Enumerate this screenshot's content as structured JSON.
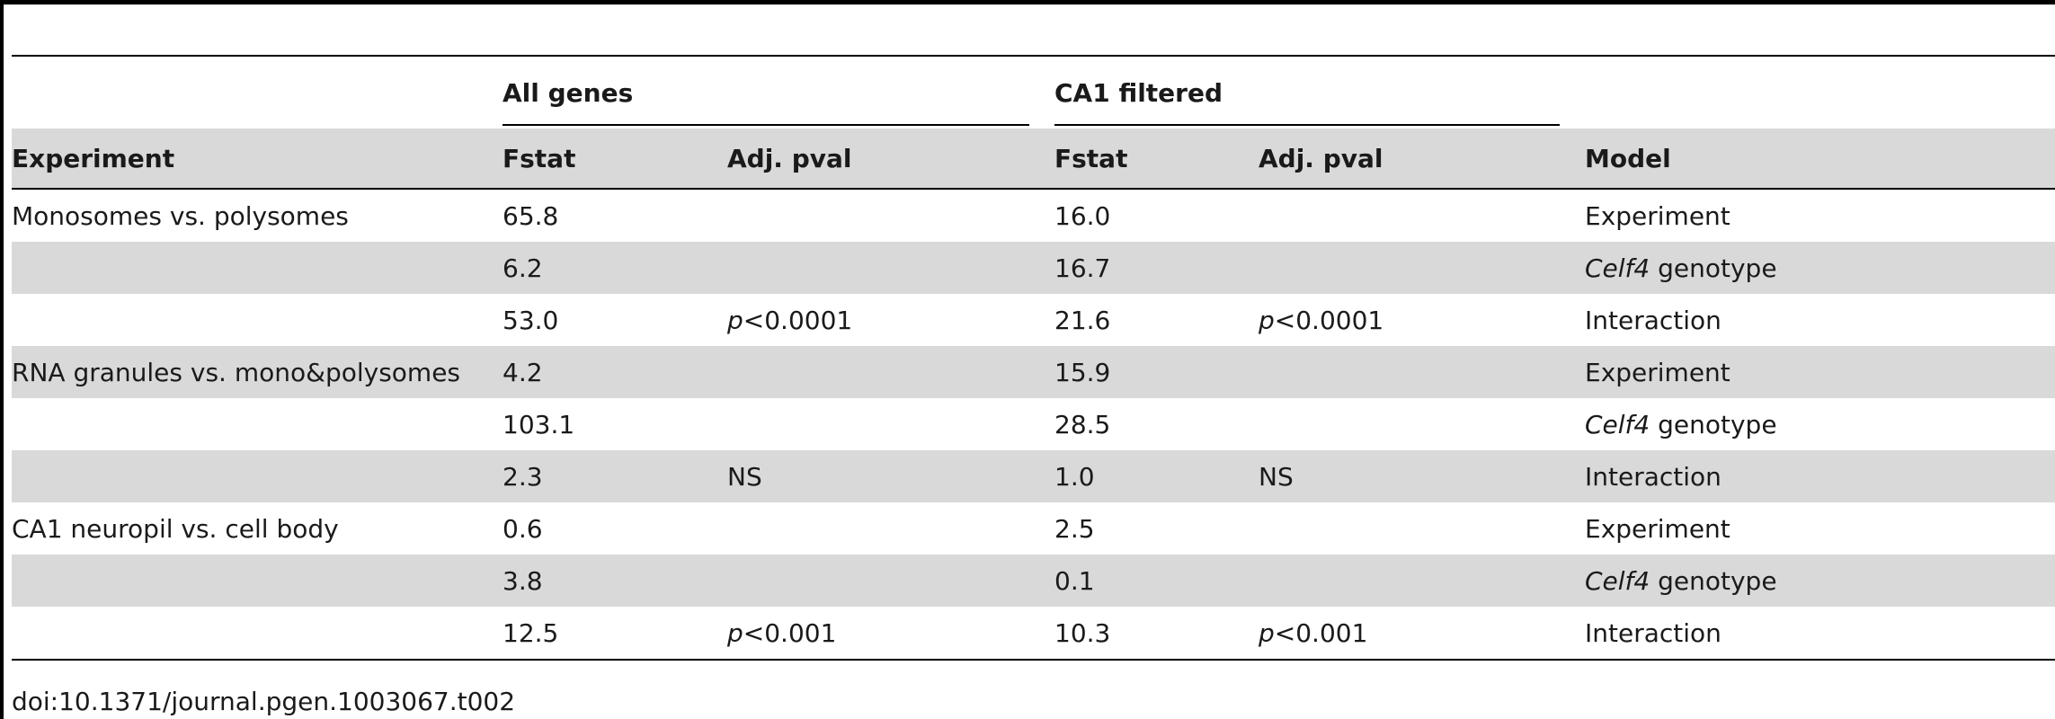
{
  "table": {
    "group_headers": {
      "all_genes": "All genes",
      "ca1_filtered": "CA1 filtered"
    },
    "columns": {
      "experiment": "Experiment",
      "fstat_all": "Fstat",
      "adj_pval_all": "Adj. pval",
      "fstat_ca1": "Fstat",
      "adj_pval_ca1": "Adj. pval",
      "model": "Model"
    },
    "rows": [
      {
        "experiment": "Monosomes vs. polysomes",
        "fstat_all": "65.8",
        "pval_all_p": "",
        "pval_all_rest": "",
        "fstat_ca1": "16.0",
        "pval_ca1_p": "",
        "pval_ca1_rest": "",
        "model_italic": "",
        "model_rest": "Experiment"
      },
      {
        "experiment": "",
        "fstat_all": "6.2",
        "pval_all_p": "",
        "pval_all_rest": "",
        "fstat_ca1": "16.7",
        "pval_ca1_p": "",
        "pval_ca1_rest": "",
        "model_italic": "Celf4",
        "model_rest": " genotype"
      },
      {
        "experiment": "",
        "fstat_all": "53.0",
        "pval_all_p": "p",
        "pval_all_rest": "<0.0001",
        "fstat_ca1": "21.6",
        "pval_ca1_p": "p",
        "pval_ca1_rest": "<0.0001",
        "model_italic": "",
        "model_rest": "Interaction"
      },
      {
        "experiment": "RNA granules vs. mono&polysomes",
        "fstat_all": "4.2",
        "pval_all_p": "",
        "pval_all_rest": "",
        "fstat_ca1": "15.9",
        "pval_ca1_p": "",
        "pval_ca1_rest": "",
        "model_italic": "",
        "model_rest": "Experiment"
      },
      {
        "experiment": "",
        "fstat_all": "103.1",
        "pval_all_p": "",
        "pval_all_rest": "",
        "fstat_ca1": "28.5",
        "pval_ca1_p": "",
        "pval_ca1_rest": "",
        "model_italic": "Celf4",
        "model_rest": " genotype"
      },
      {
        "experiment": "",
        "fstat_all": "2.3",
        "pval_all_p": "",
        "pval_all_rest": "NS",
        "fstat_ca1": "1.0",
        "pval_ca1_p": "",
        "pval_ca1_rest": "NS",
        "model_italic": "",
        "model_rest": "Interaction"
      },
      {
        "experiment": "CA1 neuropil vs. cell body",
        "fstat_all": "0.6",
        "pval_all_p": "",
        "pval_all_rest": "",
        "fstat_ca1": "2.5",
        "pval_ca1_p": "",
        "pval_ca1_rest": "",
        "model_italic": "",
        "model_rest": "Experiment"
      },
      {
        "experiment": "",
        "fstat_all": "3.8",
        "pval_all_p": "",
        "pval_all_rest": "",
        "fstat_ca1": "0.1",
        "pval_ca1_p": "",
        "pval_ca1_rest": "",
        "model_italic": "Celf4",
        "model_rest": " genotype"
      },
      {
        "experiment": "",
        "fstat_all": "12.5",
        "pval_all_p": "p",
        "pval_all_rest": "<0.001",
        "fstat_ca1": "10.3",
        "pval_ca1_p": "p",
        "pval_ca1_rest": "<0.001",
        "model_italic": "",
        "model_rest": "Interaction"
      }
    ]
  },
  "footer": {
    "doi": "doi:10.1371/journal.pgen.1003067.t002"
  },
  "colors": {
    "shade": "#d9d9d9",
    "rule": "#000000",
    "text": "#1a1a1a"
  }
}
